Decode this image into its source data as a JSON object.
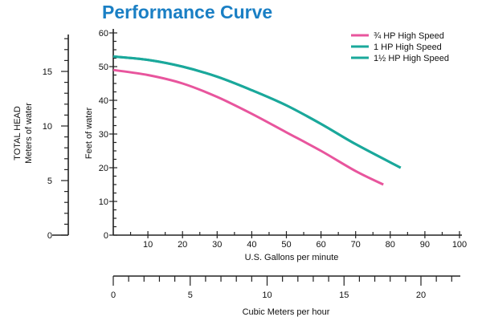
{
  "chart_data": {
    "type": "line",
    "title": "Performance Curve",
    "ylabel": "Feet of water",
    "xlabel": "U.S. Gallons per minute",
    "xlim": [
      0,
      100
    ],
    "ylim": [
      0,
      60
    ],
    "x_ticks": [
      10,
      20,
      30,
      40,
      50,
      60,
      70,
      80,
      90,
      100
    ],
    "y_ticks": [
      0,
      10,
      20,
      30,
      40,
      50,
      60
    ],
    "secondary_y": {
      "label_line1": "TOTAL HEAD",
      "label_line2": "Meters of water",
      "ticks": [
        0,
        5,
        10,
        15
      ]
    },
    "secondary_x": {
      "label": "Cubic Meters per hour",
      "ticks": [
        0,
        5,
        10,
        15,
        20
      ]
    },
    "legend_position": "top-right",
    "grid": false,
    "series": [
      {
        "name": "¾ HP High Speed",
        "color": "#e8559d",
        "x": [
          0,
          10,
          20,
          30,
          40,
          50,
          60,
          70,
          78
        ],
        "y": [
          49,
          47.5,
          45,
          41,
          36,
          30.5,
          25,
          19,
          15
        ]
      },
      {
        "name": "1 HP High Speed",
        "color": "#1aa89b",
        "x": [
          0,
          10,
          20,
          30,
          40,
          50,
          60,
          70,
          83
        ],
        "y": [
          53,
          52,
          50,
          47,
          43,
          38.5,
          33,
          27,
          20
        ]
      },
      {
        "name": "1½ HP High Speed",
        "color": "#1aa89b",
        "x": [
          0,
          10,
          20,
          30,
          40,
          50,
          60,
          70,
          83
        ],
        "y": [
          53,
          52,
          50,
          47,
          43,
          38.5,
          33,
          27,
          20
        ]
      }
    ]
  }
}
